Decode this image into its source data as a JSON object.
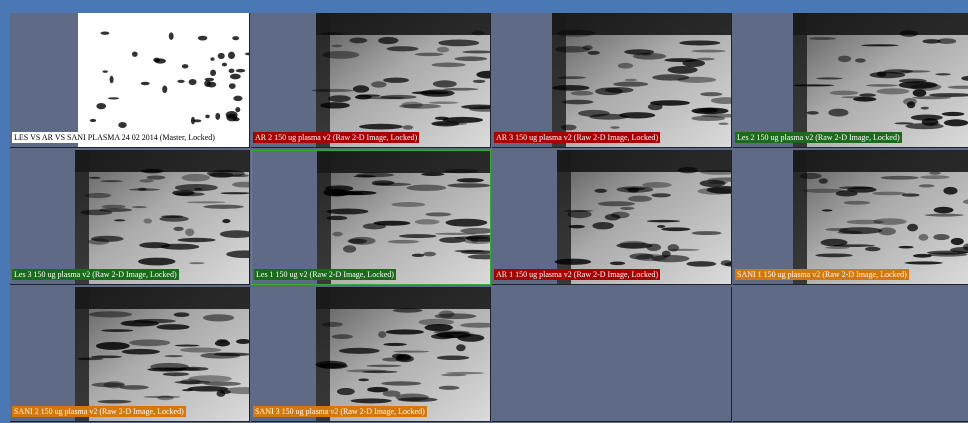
{
  "cells": [
    {
      "label": "LES VS AR VS SANI PLASMA 24 02 2014 (Master, Locked)",
      "color": "#ffffff",
      "text_color": "#000000"
    },
    {
      "label": "AR 2 150 ug plasma v2 (Raw 2-D Image, Locked)",
      "color": "#a80000",
      "text_color": "#ffffff"
    },
    {
      "label": "AR 3 150 ug plasma v2 (Raw 2-D Image, Locked)",
      "color": "#a80000",
      "text_color": "#ffffff"
    },
    {
      "label": "Les 2 150 ug plasma v2 (Raw 2-D Image, Locked)",
      "color": "#1c6b1c",
      "text_color": "#ffffff"
    },
    {
      "label": "Les 3 150 ug plasma v2 (Raw 2-D Image, Locked)",
      "color": "#1c6b1c",
      "text_color": "#ffffff"
    },
    {
      "label": "Les 1 150 ug v2 (Raw 2-D Image, Locked)",
      "color": "#1c6b1c",
      "text_color": "#ffffff"
    },
    {
      "label": "AR 1 150 ug plasma v2 (Raw 2-D Image, Locked)",
      "color": "#a80000",
      "text_color": "#ffffff"
    },
    {
      "label": "SANI 1 150 ug plasma v2 (Raw 2-D Image, Locked)",
      "color": "#d4780e",
      "text_color": "#ffffff"
    },
    {
      "label": "SANI 2 150 ug plasma v2 (Raw 2-D Image, Locked)",
      "color": "#d4780e",
      "text_color": "#ffffff"
    },
    {
      "label": "SANI 3 150 ug plasma v2 (Raw 2-D Image, Locked)",
      "color": "#d4780e",
      "text_color": "#ffffff"
    }
  ]
}
